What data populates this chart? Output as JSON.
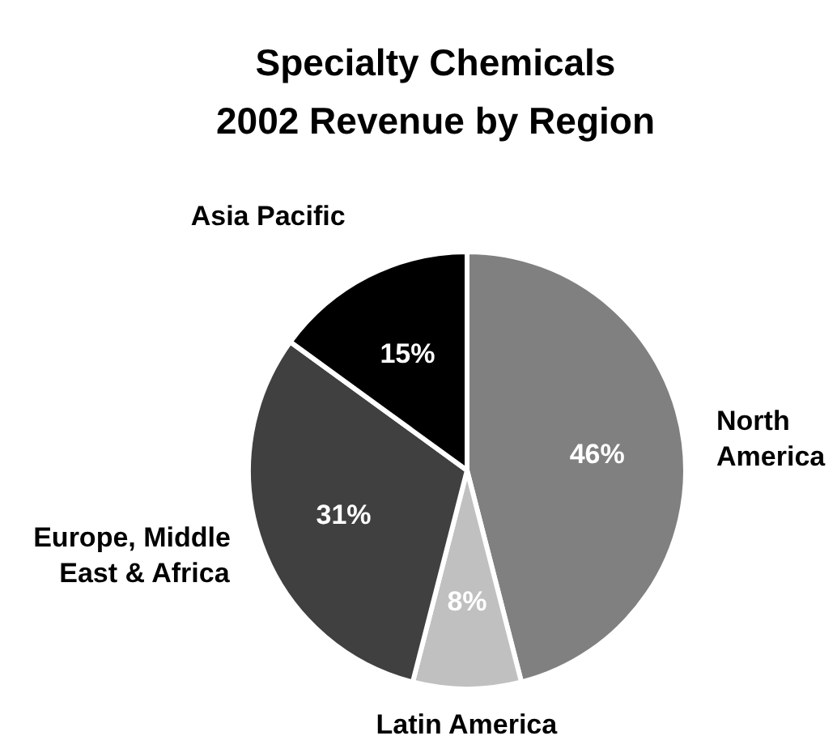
{
  "chart_data": {
    "type": "pie",
    "title": "Specialty Chemicals\n2002 Revenue by Region",
    "categories": [
      "North America",
      "Latin America",
      "Europe, Middle East & Africa",
      "Asia  Pacific"
    ],
    "values": [
      46,
      8,
      31,
      15
    ],
    "colors": [
      "#808080",
      "#c0c0c0",
      "#404040",
      "#000000"
    ],
    "value_labels": [
      "46%",
      "8%",
      "31%",
      "15%"
    ]
  }
}
